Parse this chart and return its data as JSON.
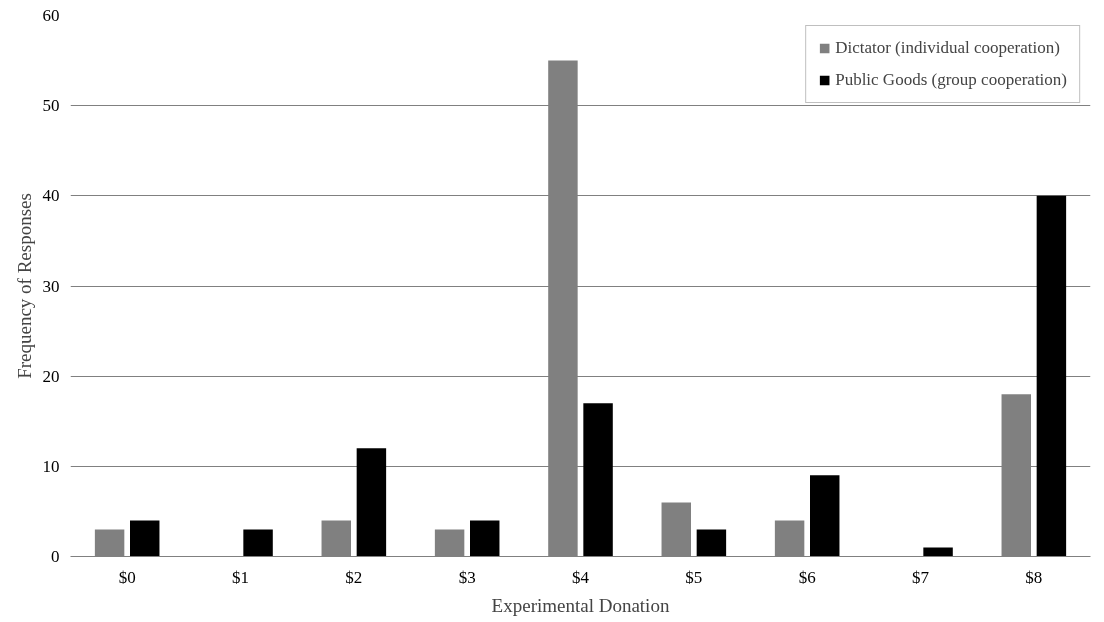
{
  "chart_data": {
    "type": "bar",
    "xlabel": "Experimental Donation",
    "ylabel": "Frequency of Responses",
    "categories": [
      "$0",
      "$1",
      "$2",
      "$3",
      "$4",
      "$5",
      "$6",
      "$7",
      "$8"
    ],
    "series": [
      {
        "name": "Dictator (individual cooperation)",
        "color": "#808080",
        "values": [
          3,
          0,
          4,
          3,
          55,
          6,
          4,
          0,
          18
        ]
      },
      {
        "name": "Public Goods (group cooperation)",
        "color": "#000000",
        "values": [
          4,
          3,
          12,
          4,
          17,
          3,
          9,
          1,
          40
        ]
      }
    ],
    "ylim": [
      0,
      60
    ],
    "yticks": [
      0,
      10,
      20,
      30,
      40,
      50,
      60
    ],
    "grid": "y",
    "legend": "top right"
  }
}
